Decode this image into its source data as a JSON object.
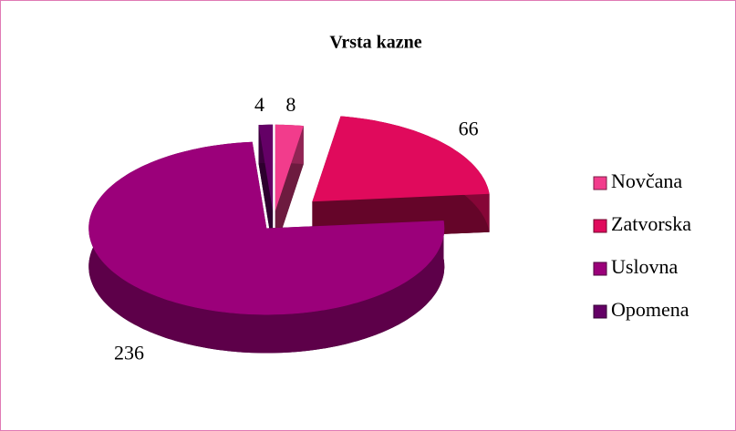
{
  "chart_data": {
    "type": "pie",
    "title": "Vrsta kazne",
    "categories": [
      "Novčana",
      "Zatvorska",
      "Uslovna",
      "Opomena"
    ],
    "values": [
      8,
      66,
      236,
      4
    ],
    "colors": [
      "#f23c8c",
      "#e00a5c",
      "#9b007a",
      "#640066"
    ],
    "legend": "right"
  }
}
